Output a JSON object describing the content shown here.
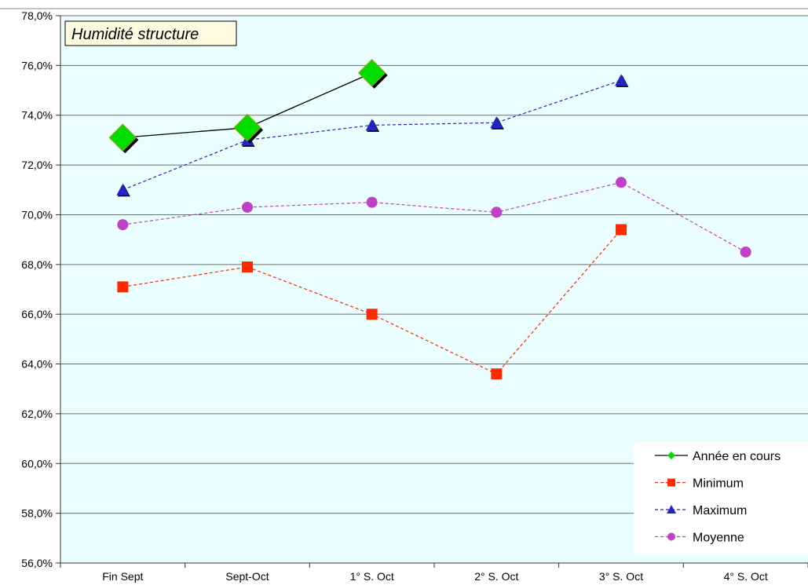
{
  "chart_data": {
    "type": "line",
    "title": "Humidité structure",
    "xlabel": "",
    "ylabel": "",
    "categories": [
      "Fin Sept",
      "Sept-Oct",
      "1° S. Oct",
      "2° S. Oct",
      "3° S. Oct",
      "4° S. Oct"
    ],
    "y_ticks": [
      "56,0%",
      "58,0%",
      "60,0%",
      "62,0%",
      "64,0%",
      "66,0%",
      "68,0%",
      "70,0%",
      "72,0%",
      "74,0%",
      "76,0%",
      "78,0%"
    ],
    "ylim": [
      56,
      78
    ],
    "grid": true,
    "legend_position": "bottom-right",
    "plot_background": "#eafdff",
    "series": [
      {
        "name": "Année en cours",
        "values": [
          73.1,
          73.5,
          75.7,
          null,
          null,
          null
        ],
        "color": "#000000",
        "marker": "diamond",
        "marker_color": "#00dd00",
        "dashed": false
      },
      {
        "name": "Minimum",
        "values": [
          67.1,
          67.9,
          66.0,
          63.6,
          69.4,
          null
        ],
        "color": "#ff2a00",
        "marker": "square",
        "marker_color": "#ff2a00",
        "dashed": true
      },
      {
        "name": "Maximum",
        "values": [
          71.0,
          73.0,
          73.6,
          73.7,
          75.4,
          null
        ],
        "color": "#2323c8",
        "marker": "triangle",
        "marker_color": "#2323c8",
        "dashed": true
      },
      {
        "name": "Moyenne",
        "values": [
          69.6,
          70.3,
          70.5,
          70.1,
          71.3,
          68.5
        ],
        "color": "#c040c8",
        "marker": "circle",
        "marker_color": "#c040c8",
        "dashed": true
      }
    ]
  }
}
